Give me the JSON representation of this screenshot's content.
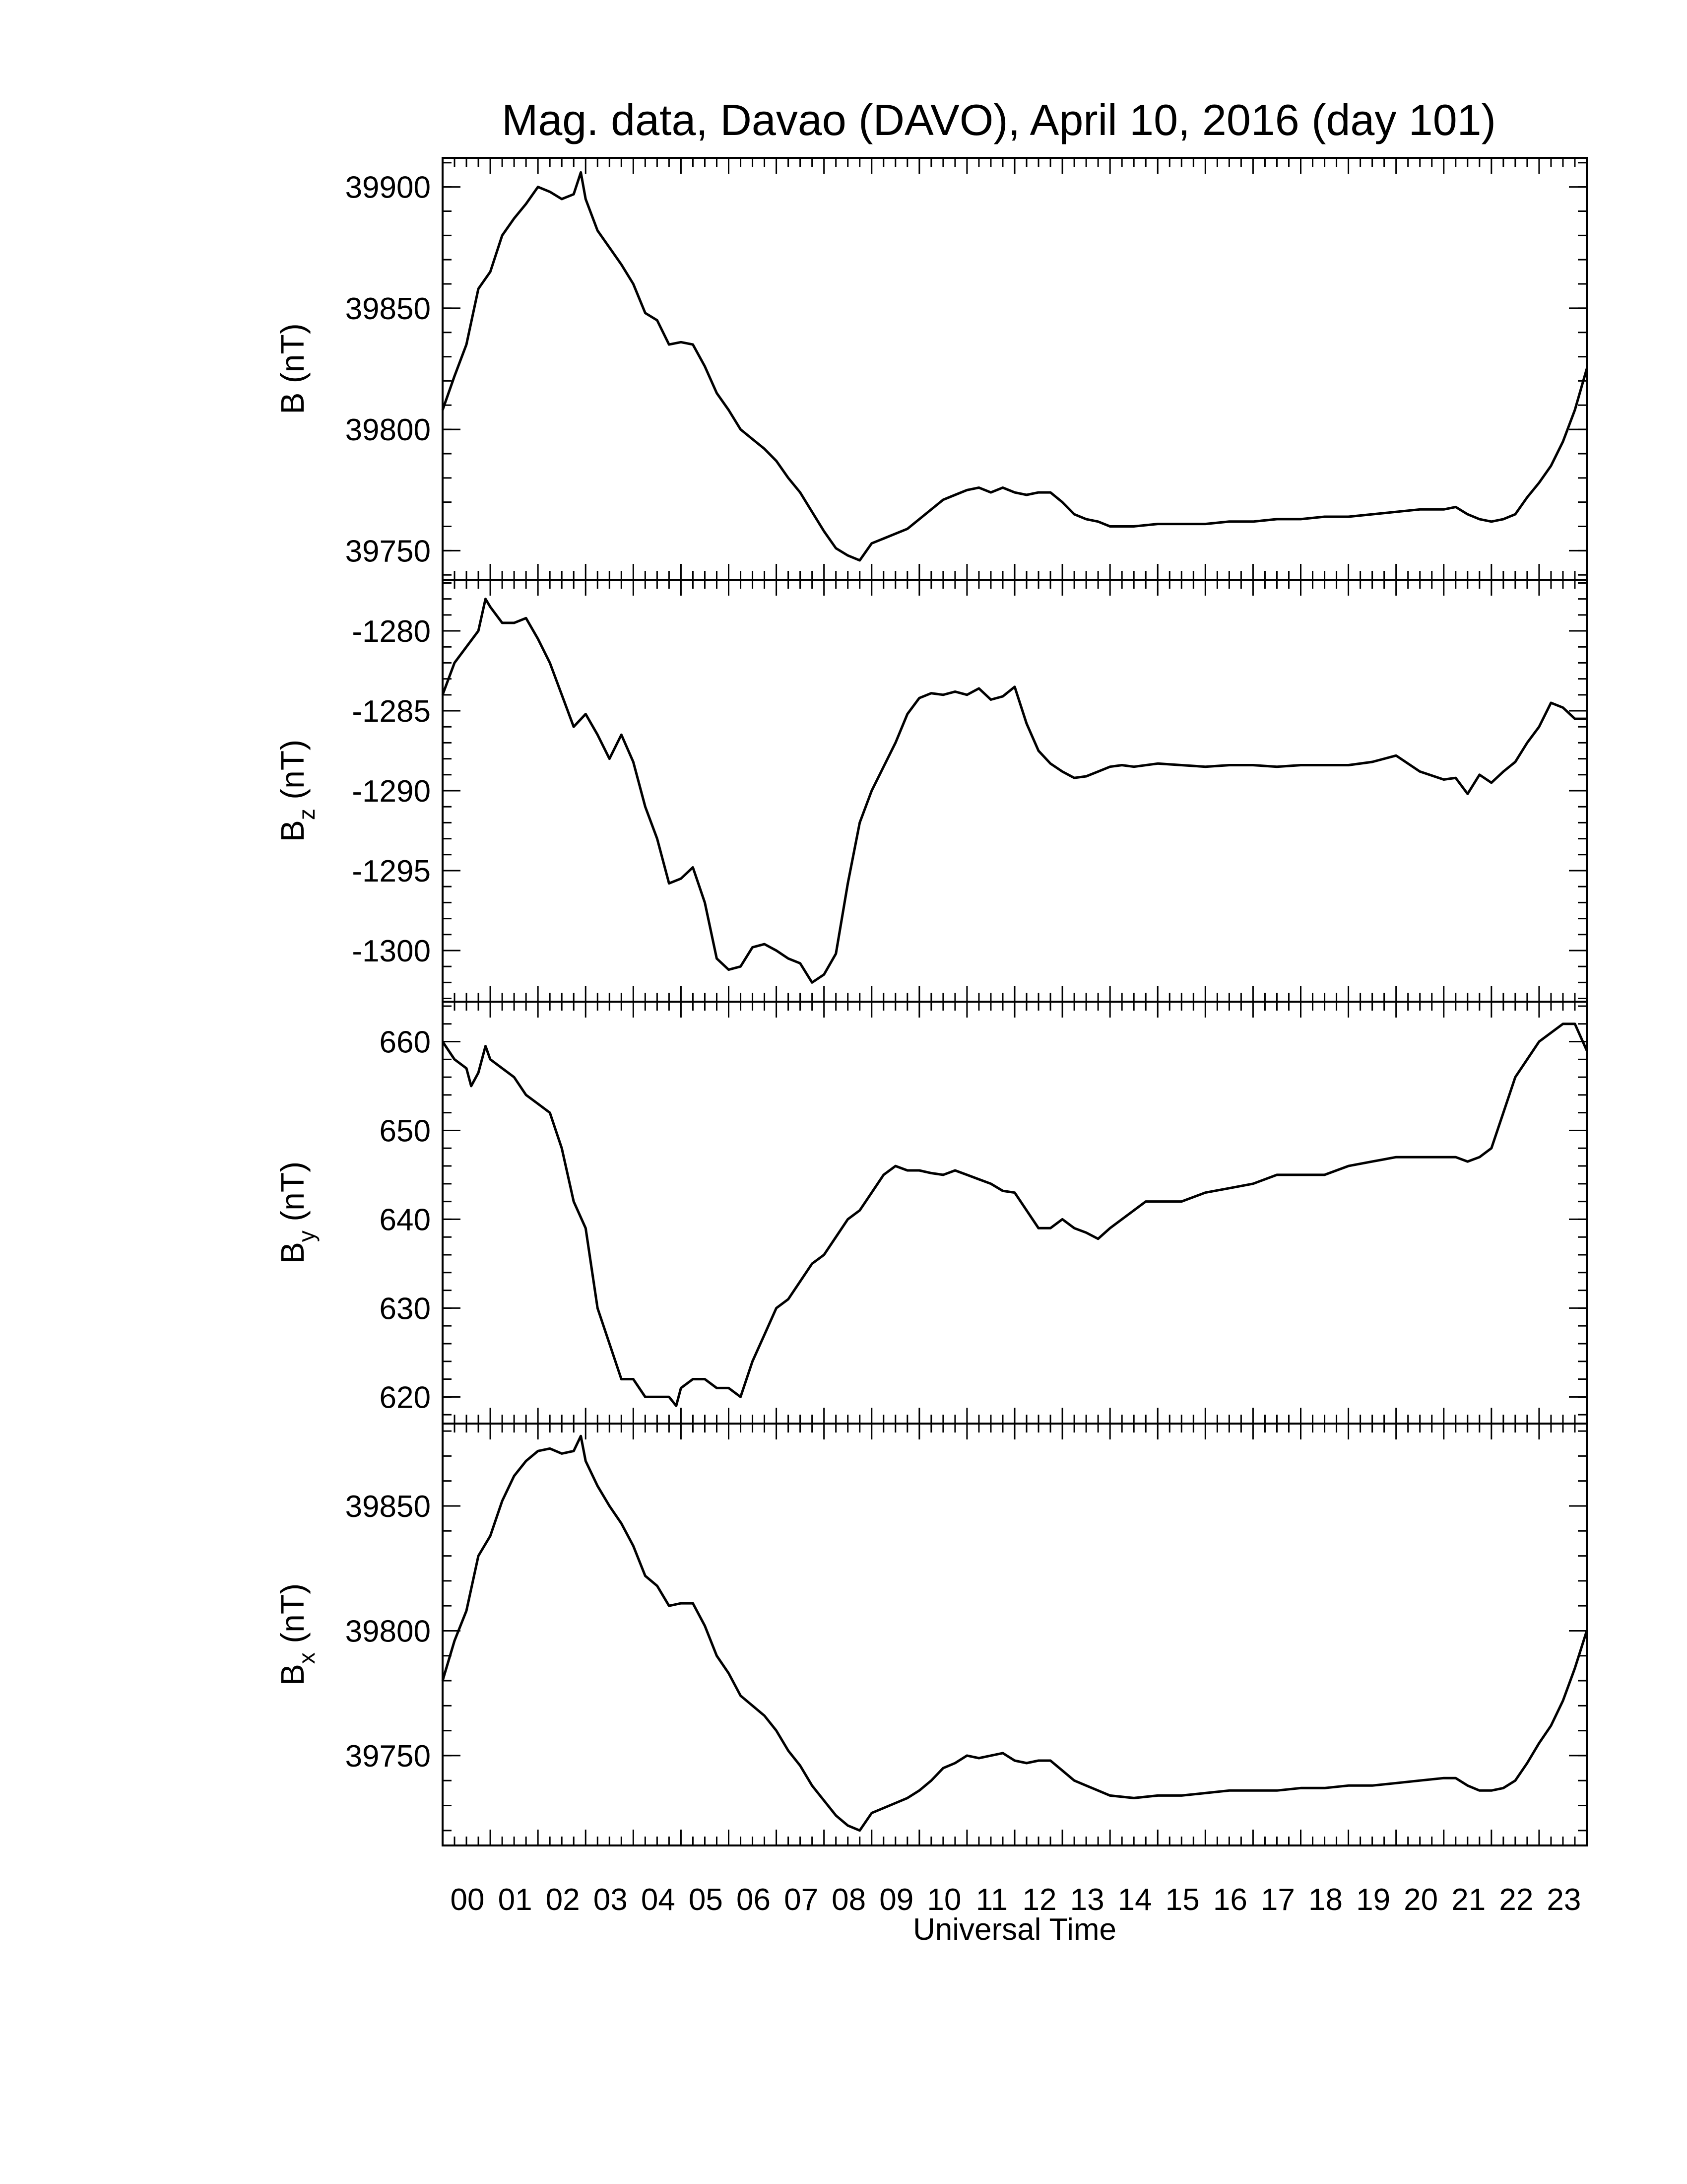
{
  "chart_data": {
    "type": "line",
    "title": "Mag. data, Davao (DAVO), April 10, 2016 (day 101)",
    "xlabel": "Universal Time",
    "x_tick_labels": [
      "00",
      "01",
      "02",
      "03",
      "04",
      "05",
      "06",
      "07",
      "08",
      "09",
      "10",
      "11",
      "12",
      "13",
      "14",
      "15",
      "16",
      "17",
      "18",
      "19",
      "20",
      "21",
      "22",
      "23"
    ],
    "xlim": [
      0,
      24
    ],
    "panels": [
      {
        "ylabel_main": "B",
        "ylabel_sub": "",
        "ylabel_unit": "(nT)",
        "ylim": [
          39738,
          39912
        ],
        "yticks": [
          39750,
          39800,
          39850,
          39900
        ],
        "ytick_labels": [
          "39750",
          "39800",
          "39850",
          "39900"
        ],
        "series": {
          "x": [
            0,
            0.25,
            0.5,
            0.75,
            1.0,
            1.25,
            1.5,
            1.75,
            2.0,
            2.25,
            2.5,
            2.75,
            2.9,
            3.0,
            3.25,
            3.5,
            3.75,
            4.0,
            4.25,
            4.5,
            4.75,
            5.0,
            5.25,
            5.5,
            5.75,
            6.0,
            6.25,
            6.5,
            6.75,
            7.0,
            7.25,
            7.5,
            7.75,
            8.0,
            8.25,
            8.5,
            8.75,
            9.0,
            9.25,
            9.5,
            9.75,
            10.0,
            10.25,
            10.5,
            10.75,
            11.0,
            11.25,
            11.5,
            11.75,
            12.0,
            12.25,
            12.5,
            12.75,
            13.0,
            13.25,
            13.5,
            13.75,
            14.0,
            14.5,
            15.0,
            15.5,
            16.0,
            16.5,
            17.0,
            17.5,
            18.0,
            18.5,
            19.0,
            19.5,
            20.0,
            20.5,
            21.0,
            21.25,
            21.5,
            21.75,
            22.0,
            22.25,
            22.5,
            22.75,
            23.0,
            23.25,
            23.5,
            23.75,
            24.0
          ],
          "y": [
            39808,
            39822,
            39835,
            39858,
            39865,
            39880,
            39887,
            39893,
            39900,
            39898,
            39895,
            39897,
            39906,
            39895,
            39882,
            39875,
            39868,
            39860,
            39848,
            39845,
            39835,
            39836,
            39835,
            39826,
            39815,
            39808,
            39800,
            39796,
            39792,
            39787,
            39780,
            39774,
            39766,
            39758,
            39751,
            39748,
            39746,
            39753,
            39755,
            39757,
            39759,
            39763,
            39767,
            39771,
            39773,
            39775,
            39776,
            39774,
            39776,
            39774,
            39773,
            39774,
            39774,
            39770,
            39765,
            39763,
            39762,
            39760,
            39760,
            39761,
            39761,
            39761,
            39762,
            39762,
            39763,
            39763,
            39764,
            39764,
            39765,
            39766,
            39767,
            39767,
            39768,
            39765,
            39763,
            39762,
            39763,
            39765,
            39772,
            39778,
            39785,
            39795,
            39808,
            39825
          ]
        }
      },
      {
        "ylabel_main": "B",
        "ylabel_sub": "z",
        "ylabel_unit": "(nT)",
        "ylim": [
          -1303.2,
          -1276.8
        ],
        "yticks": [
          -1300,
          -1295,
          -1290,
          -1285,
          -1280
        ],
        "ytick_labels": [
          "-1300",
          "-1295",
          "-1290",
          "-1285",
          "-1280"
        ],
        "series": {
          "x": [
            0,
            0.25,
            0.5,
            0.75,
            0.9,
            1.0,
            1.25,
            1.5,
            1.75,
            2.0,
            2.25,
            2.5,
            2.75,
            3.0,
            3.25,
            3.5,
            3.75,
            4.0,
            4.25,
            4.5,
            4.75,
            5.0,
            5.25,
            5.5,
            5.75,
            6.0,
            6.25,
            6.5,
            6.75,
            7.0,
            7.25,
            7.5,
            7.75,
            8.0,
            8.25,
            8.5,
            8.75,
            9.0,
            9.25,
            9.5,
            9.75,
            10.0,
            10.25,
            10.5,
            10.75,
            11.0,
            11.25,
            11.5,
            11.75,
            12.0,
            12.25,
            12.5,
            12.75,
            13.0,
            13.25,
            13.5,
            13.75,
            14.0,
            14.25,
            14.5,
            15.0,
            15.5,
            16.0,
            16.5,
            17.0,
            17.5,
            18.0,
            18.5,
            19.0,
            19.5,
            20.0,
            20.5,
            21.0,
            21.25,
            21.5,
            21.75,
            22.0,
            22.25,
            22.5,
            22.75,
            23.0,
            23.25,
            23.5,
            23.75,
            24.0
          ],
          "y": [
            -1284,
            -1282,
            -1281,
            -1280,
            -1278,
            -1278.5,
            -1279.5,
            -1279.5,
            -1279.2,
            -1280.5,
            -1282,
            -1284,
            -1286,
            -1285.2,
            -1286.5,
            -1288,
            -1286.5,
            -1288.2,
            -1291,
            -1293,
            -1295.8,
            -1295.5,
            -1294.8,
            -1297,
            -1300.5,
            -1301.2,
            -1301,
            -1299.8,
            -1299.6,
            -1300,
            -1300.5,
            -1300.8,
            -1302,
            -1301.5,
            -1300.2,
            -1295.8,
            -1292,
            -1290,
            -1288.5,
            -1287,
            -1285.2,
            -1284.2,
            -1283.9,
            -1284,
            -1283.8,
            -1284,
            -1283.6,
            -1284.3,
            -1284.1,
            -1283.5,
            -1285.8,
            -1287.5,
            -1288.3,
            -1288.8,
            -1289.2,
            -1289.1,
            -1288.8,
            -1288.5,
            -1288.4,
            -1288.5,
            -1288.3,
            -1288.4,
            -1288.5,
            -1288.4,
            -1288.4,
            -1288.5,
            -1288.4,
            -1288.4,
            -1288.4,
            -1288.2,
            -1287.8,
            -1288.8,
            -1289.3,
            -1289.2,
            -1290.2,
            -1289,
            -1289.5,
            -1288.8,
            -1288.2,
            -1287,
            -1286,
            -1284.5,
            -1284.8,
            -1285.5,
            -1285.5
          ]
        }
      },
      {
        "ylabel_main": "B",
        "ylabel_sub": "y",
        "ylabel_unit": "(nT)",
        "ylim": [
          617,
          664.5
        ],
        "yticks": [
          620,
          630,
          640,
          650,
          660
        ],
        "ytick_labels": [
          "620",
          "630",
          "640",
          "650",
          "660"
        ],
        "series": {
          "x": [
            0,
            0.25,
            0.5,
            0.6,
            0.75,
            0.9,
            1.0,
            1.25,
            1.5,
            1.75,
            2.0,
            2.25,
            2.5,
            2.75,
            3.0,
            3.25,
            3.5,
            3.75,
            4.0,
            4.25,
            4.5,
            4.75,
            4.9,
            5.0,
            5.25,
            5.5,
            5.75,
            6.0,
            6.25,
            6.5,
            6.75,
            7.0,
            7.25,
            7.5,
            7.75,
            8.0,
            8.25,
            8.5,
            8.75,
            9.0,
            9.25,
            9.5,
            9.75,
            10.0,
            10.25,
            10.5,
            10.75,
            11.0,
            11.25,
            11.5,
            11.75,
            12.0,
            12.25,
            12.5,
            12.75,
            13.0,
            13.25,
            13.5,
            13.75,
            14.0,
            14.25,
            14.5,
            14.75,
            15.0,
            15.5,
            16.0,
            16.5,
            17.0,
            17.5,
            18.0,
            18.5,
            19.0,
            19.5,
            20.0,
            20.5,
            21.0,
            21.25,
            21.5,
            21.75,
            22.0,
            22.25,
            22.5,
            22.75,
            23.0,
            23.25,
            23.5,
            23.75,
            24.0
          ],
          "y": [
            660,
            658,
            657,
            655,
            656.5,
            659.5,
            658,
            657,
            656,
            654,
            653,
            652,
            648,
            642,
            639,
            630,
            626,
            622,
            622,
            620,
            620,
            620,
            619,
            621,
            622,
            622,
            621,
            621,
            620,
            624,
            627,
            630,
            631,
            633,
            635,
            636,
            638,
            640,
            641,
            643,
            645,
            646,
            645.5,
            645.5,
            645.2,
            645,
            645.5,
            645,
            644.5,
            644,
            643.2,
            643,
            641,
            639,
            639,
            640,
            639,
            638.5,
            637.8,
            639,
            640,
            641,
            642,
            642,
            642,
            643,
            643.5,
            644,
            645,
            645,
            645,
            646,
            646.5,
            647,
            647,
            647,
            647,
            646.5,
            647,
            648,
            652,
            656,
            658,
            660,
            661,
            662,
            662,
            659
          ]
        }
      },
      {
        "ylabel_main": "B",
        "ylabel_sub": "x",
        "ylabel_unit": "(nT)",
        "ylim": [
          39714,
          39883
        ],
        "yticks": [
          39750,
          39800,
          39850
        ],
        "ytick_labels": [
          "39750",
          "39800",
          "39850"
        ],
        "series": {
          "x": [
            0,
            0.25,
            0.5,
            0.75,
            1.0,
            1.25,
            1.5,
            1.75,
            2.0,
            2.25,
            2.5,
            2.75,
            2.9,
            3.0,
            3.25,
            3.5,
            3.75,
            4.0,
            4.25,
            4.5,
            4.75,
            5.0,
            5.25,
            5.5,
            5.75,
            6.0,
            6.25,
            6.5,
            6.75,
            7.0,
            7.25,
            7.5,
            7.75,
            8.0,
            8.25,
            8.5,
            8.75,
            9.0,
            9.25,
            9.5,
            9.75,
            10.0,
            10.25,
            10.5,
            10.75,
            11.0,
            11.25,
            11.5,
            11.75,
            12.0,
            12.25,
            12.5,
            12.75,
            13.0,
            13.25,
            13.5,
            13.75,
            14.0,
            14.5,
            15.0,
            15.5,
            16.0,
            16.5,
            17.0,
            17.5,
            18.0,
            18.5,
            19.0,
            19.5,
            20.0,
            20.5,
            21.0,
            21.25,
            21.5,
            21.75,
            22.0,
            22.25,
            22.5,
            22.75,
            23.0,
            23.25,
            23.5,
            23.75,
            24.0
          ],
          "y": [
            39780,
            39796,
            39808,
            39830,
            39838,
            39852,
            39862,
            39868,
            39872,
            39873,
            39871,
            39872,
            39878,
            39868,
            39858,
            39850,
            39843,
            39834,
            39822,
            39818,
            39810,
            39811,
            39811,
            39802,
            39790,
            39783,
            39774,
            39770,
            39766,
            39760,
            39752,
            39746,
            39738,
            39732,
            39726,
            39722,
            39720,
            39727,
            39729,
            39731,
            39733,
            39736,
            39740,
            39745,
            39747,
            39750,
            39749,
            39750,
            39751,
            39748,
            39747,
            39748,
            39748,
            39744,
            39740,
            39738,
            39736,
            39734,
            39733,
            39734,
            39734,
            39735,
            39736,
            39736,
            39736,
            39737,
            39737,
            39738,
            39738,
            39739,
            39740,
            39741,
            39741,
            39738,
            39736,
            39736,
            39737,
            39740,
            39747,
            39755,
            39762,
            39772,
            39785,
            39800
          ]
        }
      }
    ],
    "grid": false,
    "legend": "none"
  }
}
